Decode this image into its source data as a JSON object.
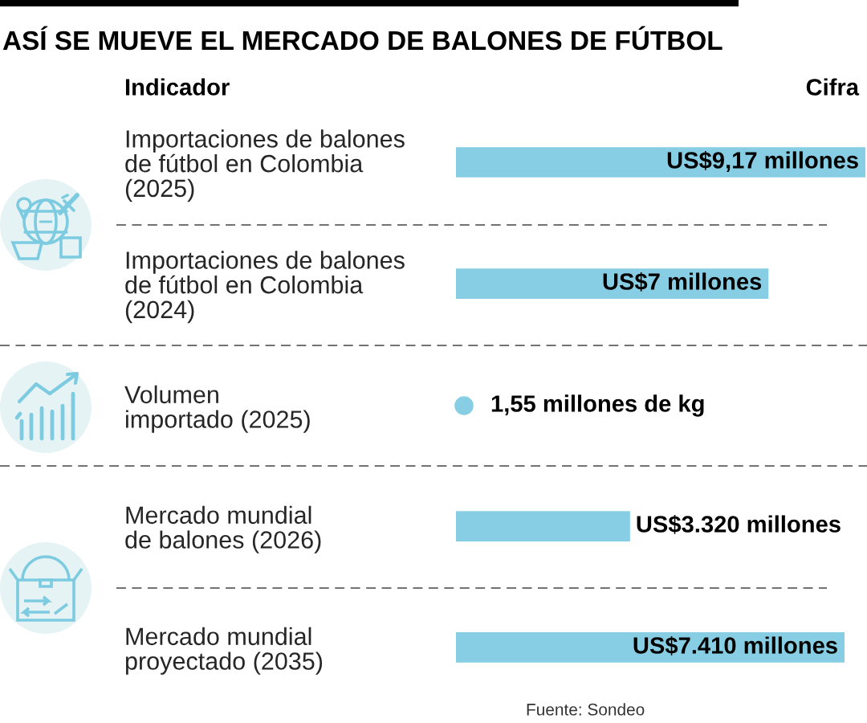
{
  "chart_data": [
    {
      "type": "bar",
      "orientation": "horizontal",
      "title": "ASÍ SE MUEVE EL MERCADO DE BALONES DE FÚTBOL",
      "ylabel": "Indicador",
      "xlabel": "Cifra",
      "categories": [
        "Importaciones de balones\nde fútbol en Colombia\n(2025)",
        "Importaciones de balones\nde fútbol en Colombia\n(2024)"
      ],
      "values": [
        9.17,
        7
      ],
      "value_labels": [
        "US$9,17 millones",
        "US$7 millones"
      ],
      "color": "#87cee4",
      "tick_labels": "y"
    },
    {
      "type": "other",
      "categories": [
        "Volumen\nimportado (2025)"
      ],
      "values": [
        1.55
      ],
      "value_labels": [
        "1,55 millones de kg"
      ],
      "color": "#87cee4"
    },
    {
      "type": "bar",
      "orientation": "horizontal",
      "categories": [
        "Mercado mundial\nde balones (2026)",
        "Mercado mundial\nproyectado (2035)"
      ],
      "values": [
        3320,
        7410
      ],
      "value_labels": [
        "US$3.320 millones",
        "US$7.410 millones"
      ],
      "color": "#87cee4",
      "tick_labels": "y",
      "annotations": [
        "Fuente: Sondeo"
      ]
    }
  ]
}
